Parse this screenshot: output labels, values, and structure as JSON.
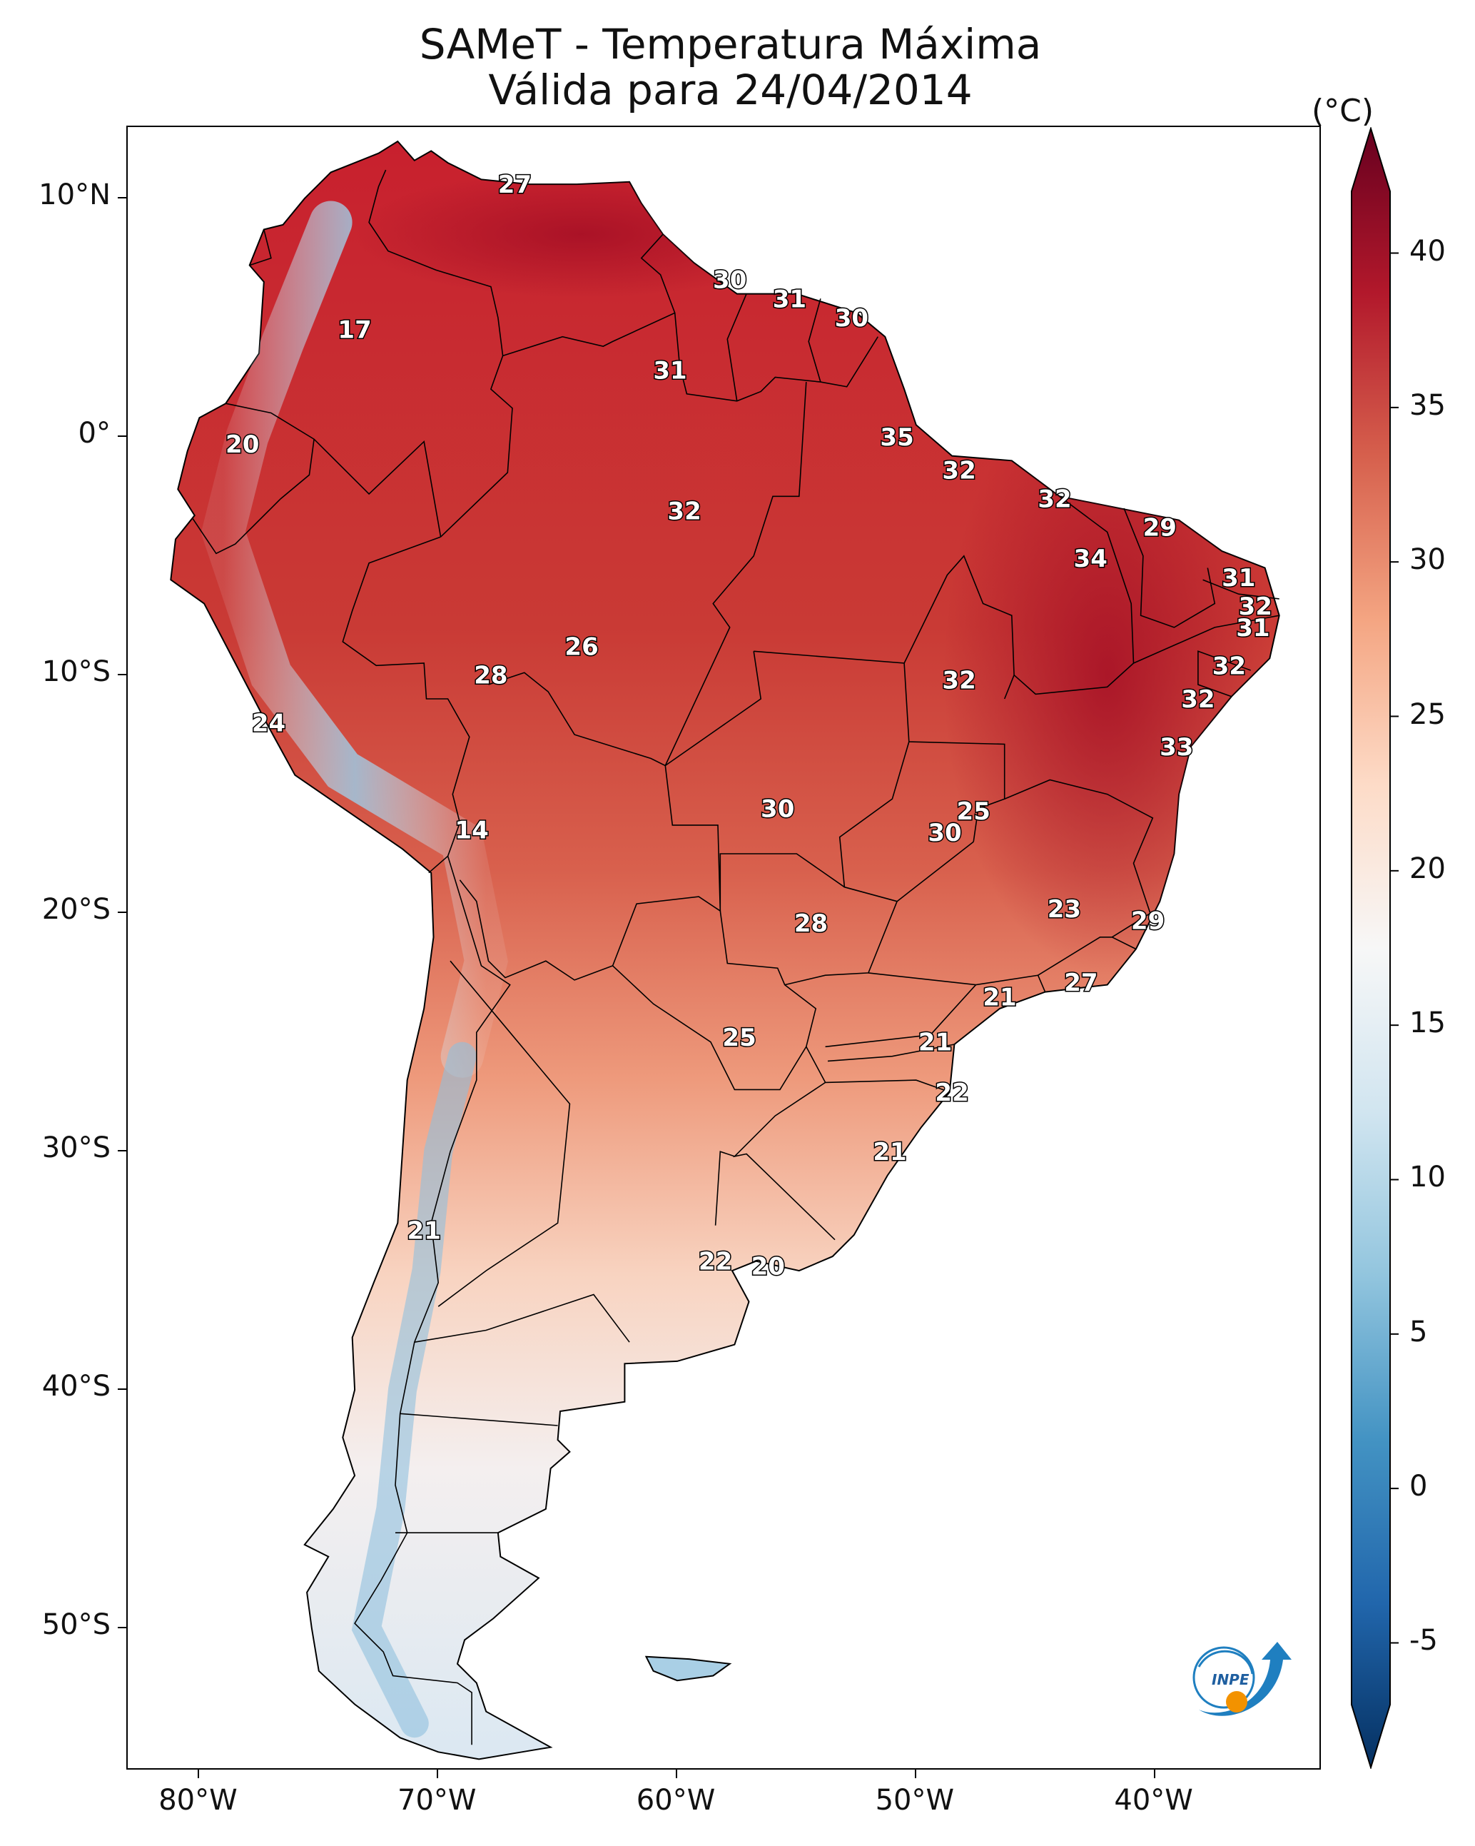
{
  "title_line1": "SAMeT - Temperatura Máxima",
  "title_line2": "Válida para 24/04/2014",
  "colorbar": {
    "unit": "(°C)",
    "min": -7,
    "max": 42,
    "ticks": [
      "40",
      "35",
      "30",
      "25",
      "20",
      "15",
      "10",
      "5",
      "0",
      "-5"
    ],
    "tick_values": [
      40,
      35,
      30,
      25,
      20,
      15,
      10,
      5,
      0,
      -5
    ],
    "colors": [
      "#053061",
      "#2166ac",
      "#4393c3",
      "#92c5de",
      "#d1e5f0",
      "#f7f7f7",
      "#fddbc7",
      "#f4a582",
      "#d6604d",
      "#b2182b",
      "#67001f"
    ]
  },
  "axes": {
    "lat_labels": [
      "10°N",
      "0°",
      "10°S",
      "20°S",
      "30°S",
      "40°S",
      "50°S"
    ],
    "lat_values": [
      10,
      0,
      -10,
      -20,
      -30,
      -40,
      -50
    ],
    "lon_labels": [
      "80°W",
      "70°W",
      "60°W",
      "50°W",
      "40°W"
    ],
    "lon_values": [
      -80,
      -70,
      -60,
      -50,
      -40
    ],
    "lon_range": [
      -83,
      -33
    ],
    "lat_range": [
      -56,
      13
    ]
  },
  "station_values": [
    {
      "v": "27",
      "lon": -66.8,
      "lat": 10.6
    },
    {
      "v": "30",
      "lon": -57.8,
      "lat": 6.6
    },
    {
      "v": "31",
      "lon": -55.3,
      "lat": 5.8
    },
    {
      "v": "30",
      "lon": -52.7,
      "lat": 5.0
    },
    {
      "v": "17",
      "lon": -73.5,
      "lat": 4.5
    },
    {
      "v": "31",
      "lon": -60.3,
      "lat": 2.8
    },
    {
      "v": "35",
      "lon": -50.8,
      "lat": 0.0
    },
    {
      "v": "20",
      "lon": -78.2,
      "lat": -0.3
    },
    {
      "v": "32",
      "lon": -48.2,
      "lat": -1.4
    },
    {
      "v": "32",
      "lon": -44.2,
      "lat": -2.6
    },
    {
      "v": "32",
      "lon": -59.7,
      "lat": -3.1
    },
    {
      "v": "29",
      "lon": -39.8,
      "lat": -3.8
    },
    {
      "v": "34",
      "lon": -42.7,
      "lat": -5.1
    },
    {
      "v": "31",
      "lon": -36.5,
      "lat": -5.9
    },
    {
      "v": "32",
      "lon": -35.8,
      "lat": -7.1
    },
    {
      "v": "31",
      "lon": -35.9,
      "lat": -8.0
    },
    {
      "v": "26",
      "lon": -64.0,
      "lat": -8.8
    },
    {
      "v": "32",
      "lon": -36.9,
      "lat": -9.6
    },
    {
      "v": "28",
      "lon": -67.8,
      "lat": -10.0
    },
    {
      "v": "32",
      "lon": -48.2,
      "lat": -10.2
    },
    {
      "v": "32",
      "lon": -38.2,
      "lat": -11.0
    },
    {
      "v": "24",
      "lon": -77.1,
      "lat": -12.0
    },
    {
      "v": "33",
      "lon": -39.1,
      "lat": -13.0
    },
    {
      "v": "30",
      "lon": -55.8,
      "lat": -15.6
    },
    {
      "v": "25",
      "lon": -47.6,
      "lat": -15.7
    },
    {
      "v": "30",
      "lon": -48.8,
      "lat": -16.6
    },
    {
      "v": "14",
      "lon": -68.6,
      "lat": -16.5
    },
    {
      "v": "23",
      "lon": -43.8,
      "lat": -19.8
    },
    {
      "v": "28",
      "lon": -54.4,
      "lat": -20.4
    },
    {
      "v": "29",
      "lon": -40.3,
      "lat": -20.3
    },
    {
      "v": "27",
      "lon": -43.1,
      "lat": -22.9
    },
    {
      "v": "21",
      "lon": -46.5,
      "lat": -23.5
    },
    {
      "v": "25",
      "lon": -57.4,
      "lat": -25.2
    },
    {
      "v": "21",
      "lon": -49.2,
      "lat": -25.4
    },
    {
      "v": "22",
      "lon": -48.5,
      "lat": -27.5
    },
    {
      "v": "21",
      "lon": -51.1,
      "lat": -30.0
    },
    {
      "v": "21",
      "lon": -70.6,
      "lat": -33.3
    },
    {
      "v": "22",
      "lon": -58.4,
      "lat": -34.6
    },
    {
      "v": "20",
      "lon": -56.2,
      "lat": -34.8
    }
  ],
  "logo": {
    "text": "INPE"
  }
}
